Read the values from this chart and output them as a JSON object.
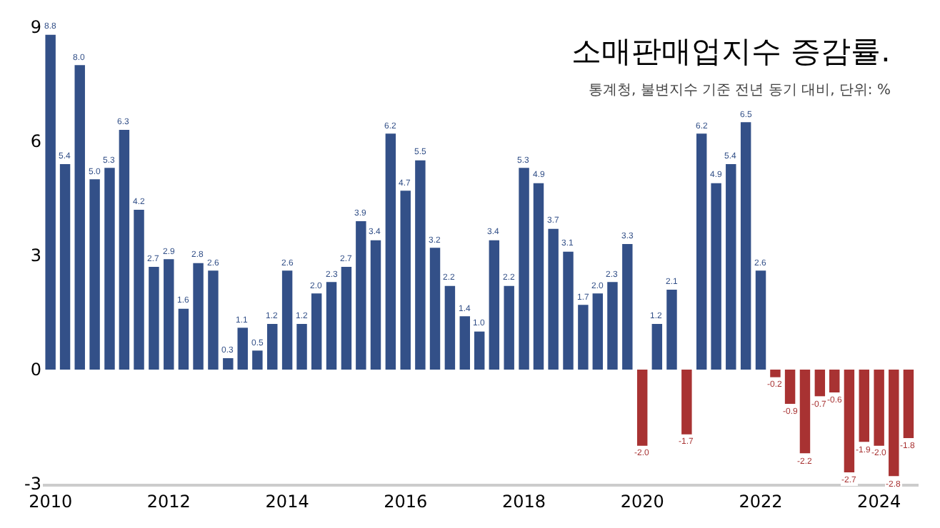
{
  "chart_data": {
    "type": "bar",
    "title": "소매판매업지수 증감률.",
    "subtitle": "통계청, 불변지수 기준 전년 동기 대비, 단위: %",
    "x": [
      "2010-01",
      "2010-04",
      "2010-07",
      "2010-10",
      "2011-01",
      "2011-04",
      "2011-07",
      "2011-10",
      "2012-01",
      "2012-04",
      "2012-07",
      "2012-10",
      "2013-01",
      "2013-04",
      "2013-07",
      "2013-10",
      "2014-01",
      "2014-04",
      "2014-07",
      "2014-10",
      "2015-01",
      "2015-04",
      "2015-07",
      "2015-10",
      "2016-01",
      "2016-04",
      "2016-07",
      "2016-10",
      "2017-01",
      "2017-04",
      "2017-07",
      "2017-10",
      "2018-01",
      "2018-04",
      "2018-07",
      "2018-10",
      "2019-01",
      "2019-04",
      "2019-07",
      "2019-10",
      "2020-01",
      "2020-04",
      "2020-07",
      "2020-10",
      "2021-01",
      "2021-04",
      "2021-07",
      "2021-10",
      "2022-01",
      "2022-04",
      "2022-07",
      "2022-10",
      "2023-01",
      "2023-04",
      "2023-07",
      "2023-10",
      "2024-01",
      "2024-04",
      "2024-07"
    ],
    "values": [
      8.8,
      5.4,
      8.0,
      5.0,
      5.3,
      6.3,
      4.2,
      2.7,
      2.9,
      1.6,
      2.8,
      2.6,
      0.3,
      1.1,
      0.5,
      1.2,
      2.6,
      1.2,
      2.0,
      2.3,
      2.7,
      3.9,
      3.4,
      6.2,
      4.7,
      5.5,
      3.2,
      2.2,
      1.4,
      1.0,
      3.4,
      2.2,
      5.3,
      4.9,
      3.7,
      3.1,
      1.7,
      2.0,
      2.3,
      3.3,
      -2.0,
      1.2,
      2.1,
      -1.7,
      6.2,
      4.9,
      5.4,
      6.5,
      2.6,
      -0.2,
      -0.9,
      -2.2,
      -0.7,
      -0.6,
      -2.7,
      -1.9,
      -2.0,
      -2.8,
      -1.8
    ],
    "colors": [
      "#335088",
      "#335088",
      "#335088",
      "#335088",
      "#335088",
      "#335088",
      "#335088",
      "#335088",
      "#335088",
      "#335088",
      "#335088",
      "#335088",
      "#335088",
      "#335088",
      "#335088",
      "#335088",
      "#335088",
      "#335088",
      "#335088",
      "#335088",
      "#335088",
      "#335088",
      "#335088",
      "#335088",
      "#335088",
      "#335088",
      "#335088",
      "#335088",
      "#335088",
      "#335088",
      "#335088",
      "#335088",
      "#335088",
      "#335088",
      "#335088",
      "#335088",
      "#335088",
      "#335088",
      "#335088",
      "#335088",
      "#a83232",
      "#335088",
      "#335088",
      "#a83232",
      "#335088",
      "#335088",
      "#335088",
      "#335088",
      "#335088",
      "#a83232",
      "#a83232",
      "#a83232",
      "#a83232",
      "#a83232",
      "#a83232",
      "#a83232",
      "#a83232",
      "#a83232",
      "#a83232"
    ],
    "value_labels": [
      "8.8",
      "5.4",
      "8.0",
      "5.0",
      "5.3",
      "6.3",
      "4.2",
      "2.7",
      "2.9",
      "1.6",
      "2.8",
      "2.6",
      "0.3",
      "1.1",
      "0.5",
      "1.2",
      "2.6",
      "1.2",
      "2.0",
      "2.3",
      "2.7",
      "3.9",
      "3.4",
      "6.2",
      "4.7",
      "5.5",
      "3.2",
      "2.2",
      "1.4",
      "1.0",
      "3.4",
      "2.2",
      "5.3",
      "4.9",
      "3.7",
      "3.1",
      "1.7",
      "2.0",
      "2.3",
      "3.3",
      "-2.0",
      "1.2",
      "2.1",
      "-1.7",
      "6.2",
      "4.9",
      "5.4",
      "6.5",
      "2.6",
      "-0.2",
      "-0.9",
      "-2.2",
      "-0.7",
      "-0.6",
      "-2.7",
      "-1.9",
      "-2.0",
      "-2.8",
      "-1.8"
    ],
    "xlim": [
      "2009-11-15",
      "2024-09-01"
    ],
    "xticks": [
      "2010",
      "2012",
      "2014",
      "2016",
      "2018",
      "2020",
      "2022",
      "2024"
    ],
    "ylim": [
      -3,
      9
    ],
    "yticks": [
      -3,
      0,
      3,
      6,
      9
    ]
  }
}
